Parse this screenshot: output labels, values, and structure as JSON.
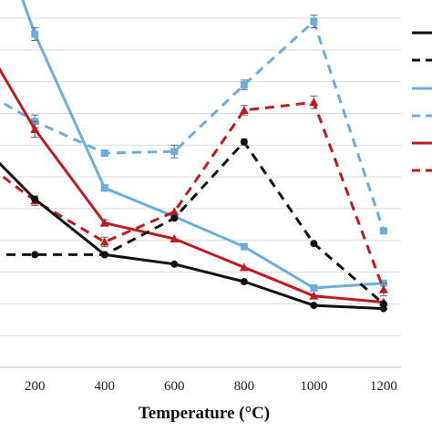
{
  "chart_data": {
    "type": "line",
    "title": "",
    "xlabel": "Temperature (°C)",
    "ylabel": "",
    "x": [
      200,
      400,
      600,
      800,
      1000,
      1200
    ],
    "xlim": [
      100,
      1250
    ],
    "ylim": [
      0,
      22
    ],
    "grid": true,
    "legend": "right (cropped, no visible text)",
    "series": [
      {
        "color": "#6aaee0",
        "dash": false,
        "marker": "square",
        "values": [
          21.0,
          11.3,
          9.5,
          7.6,
          5.0,
          5.3
        ],
        "errors": [
          0.4,
          0.2,
          0,
          0,
          0,
          0
        ]
      },
      {
        "color": "#6aaee0",
        "dash": true,
        "marker": "square",
        "values": [
          15.5,
          13.5,
          13.6,
          17.8,
          21.8,
          8.6
        ],
        "errors": [
          0.4,
          0.2,
          0.4,
          0.3,
          0.4,
          0
        ]
      },
      {
        "color": "#c0191f",
        "dash": false,
        "marker": "triangle",
        "values": [
          15.0,
          9.1,
          8.1,
          6.3,
          4.5,
          4.1
        ],
        "errors": [
          0.5,
          0.2,
          0,
          0,
          0,
          0
        ]
      },
      {
        "color": "#c0191f",
        "dash": true,
        "marker": "triangle",
        "values": [
          10.5,
          7.9,
          9.8,
          16.2,
          16.7,
          4.9
        ],
        "errors": [
          0.3,
          0.3,
          0,
          0.3,
          0.4,
          0.4
        ]
      },
      {
        "color": "#111111",
        "dash": false,
        "marker": "circle",
        "values": [
          10.6,
          7.1,
          6.5,
          5.4,
          3.9,
          3.7
        ],
        "errors": [
          0,
          0,
          0,
          0,
          0,
          0
        ]
      },
      {
        "color": "#111111",
        "dash": true,
        "marker": "circle",
        "values": [
          7.1,
          7.1,
          9.4,
          14.2,
          7.8,
          4.0
        ],
        "errors": [
          0,
          0,
          0,
          0.2,
          0,
          0
        ]
      }
    ]
  }
}
